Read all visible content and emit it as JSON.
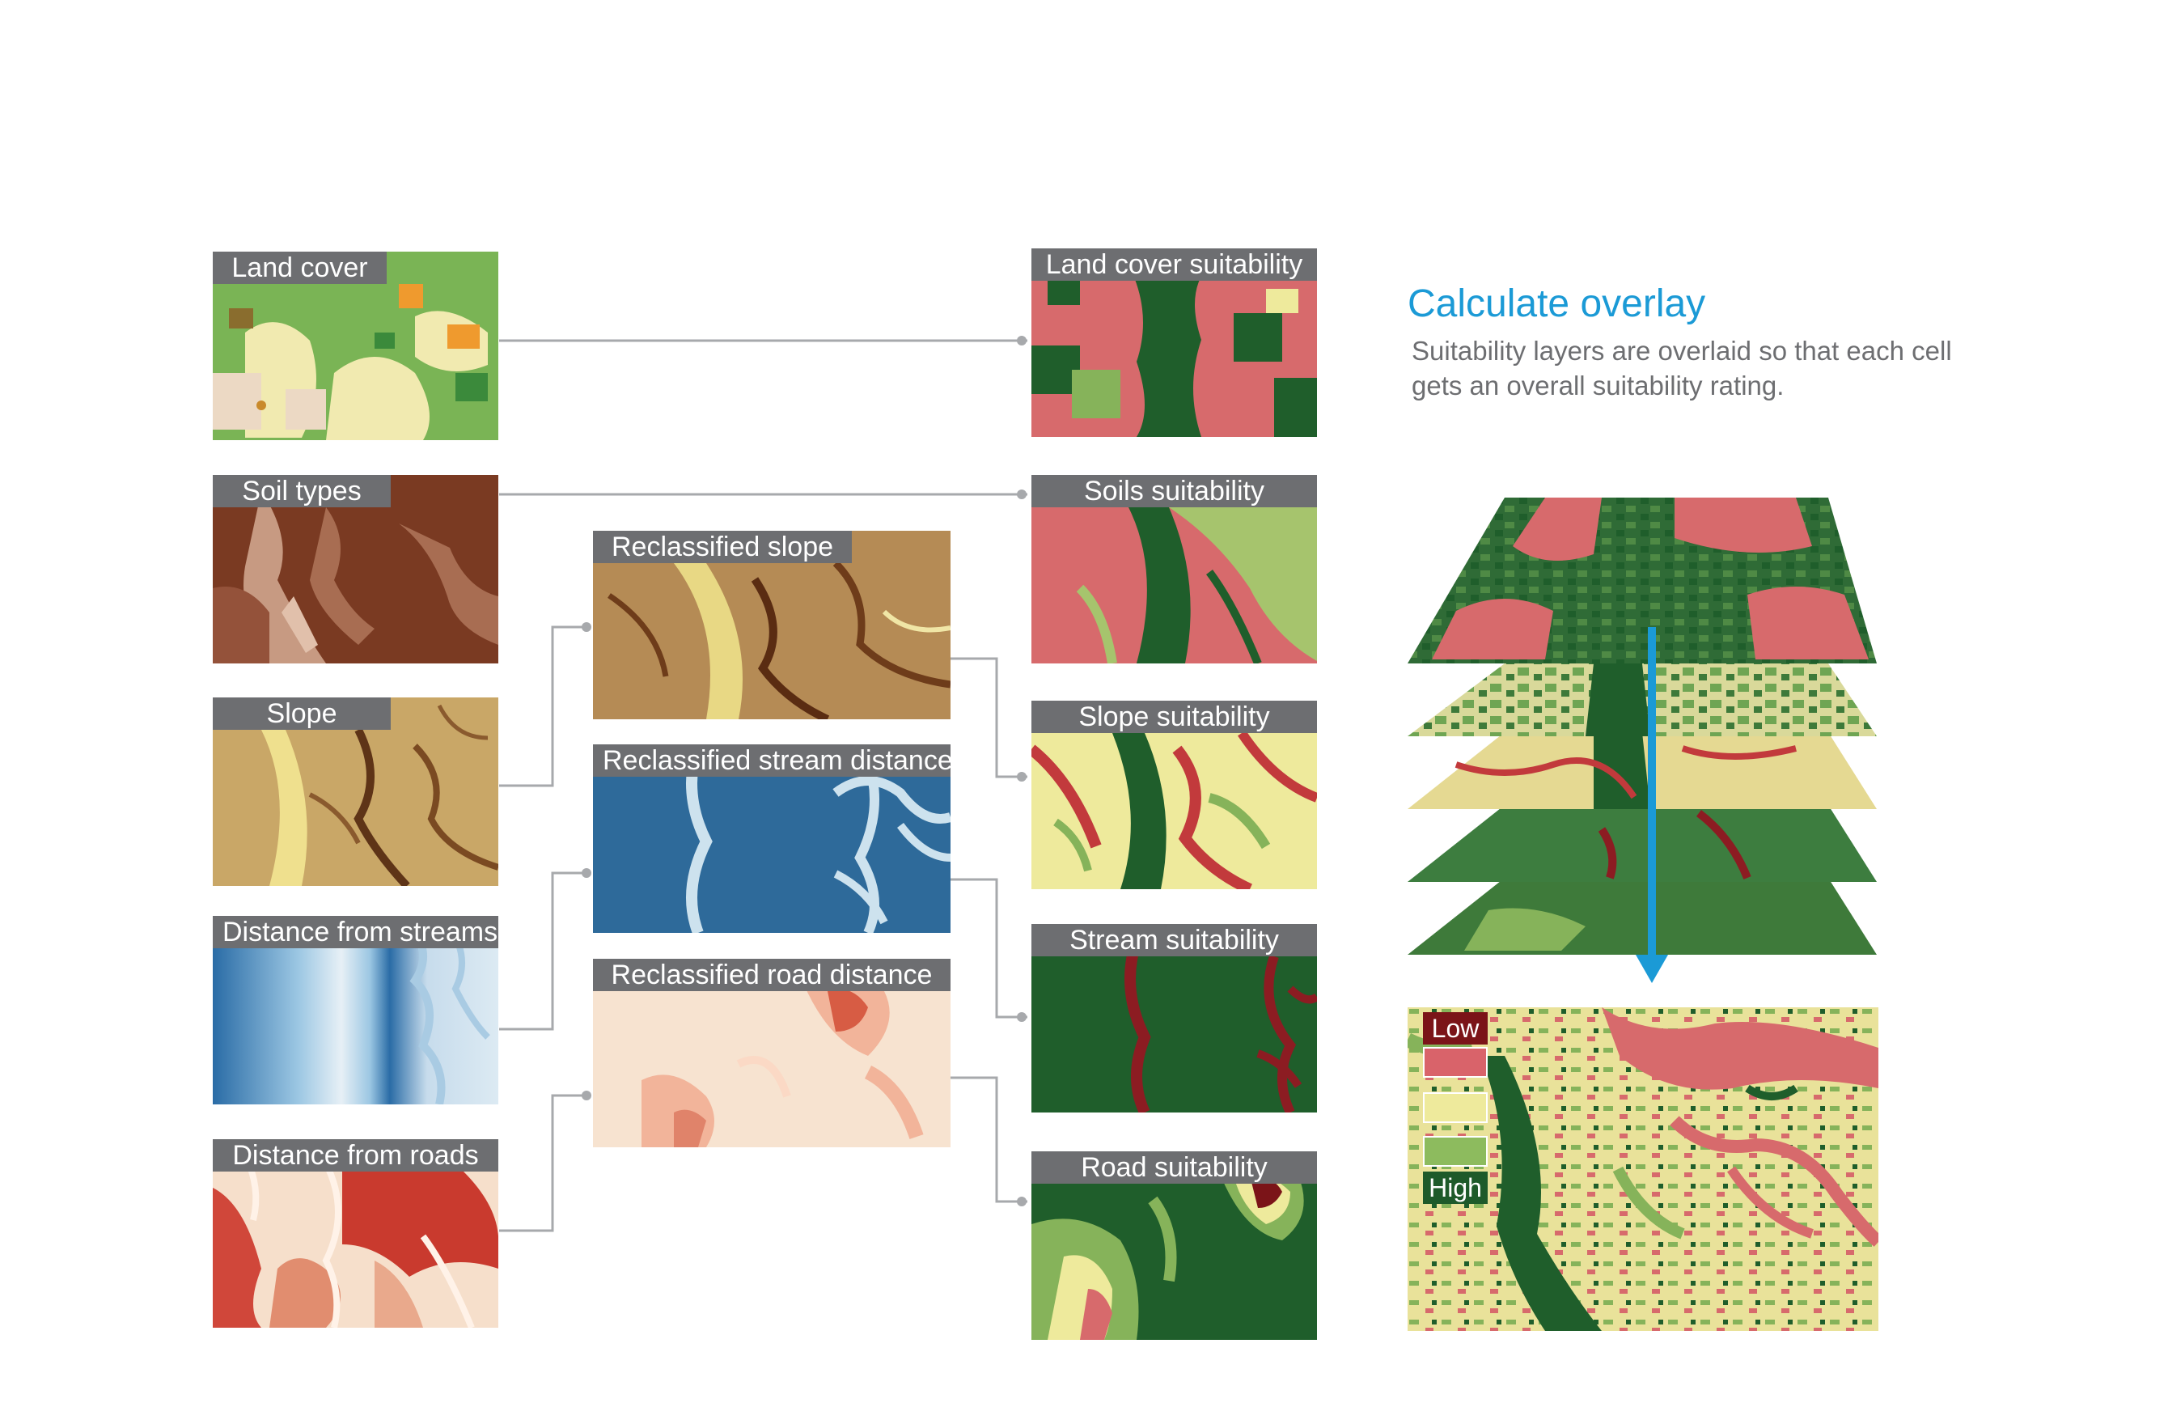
{
  "colors": {
    "label_bg": "#6d6e71",
    "accent": "#1b9ad6",
    "connector": "#a7a9ac",
    "low": "#7b1418",
    "high": "#1e5a2a"
  },
  "input_layers": [
    {
      "label": "Land cover"
    },
    {
      "label": "Soil types"
    },
    {
      "label": "Slope"
    },
    {
      "label": "Distance from streams"
    },
    {
      "label": "Distance from roads"
    }
  ],
  "reclassified_layers": [
    {
      "label": "Reclassified slope"
    },
    {
      "label": "Reclassified stream distance"
    },
    {
      "label": "Reclassified road distance"
    }
  ],
  "suitability_layers": [
    {
      "label": "Land cover suitability"
    },
    {
      "label": "Soils suitability"
    },
    {
      "label": "Slope suitability"
    },
    {
      "label": "Stream suitability"
    },
    {
      "label": "Road suitability"
    }
  ],
  "overlay": {
    "title": "Calculate overlay",
    "description": "Suitability layers are overlaid so that each cell gets an overall suitability rating."
  },
  "legend": {
    "low_label": "Low",
    "high_label": "High",
    "swatches": [
      {
        "name": "low-suitability",
        "color": "#d9636a"
      },
      {
        "name": "moderate-suitability",
        "color": "#eeea9c"
      },
      {
        "name": "good-suitability",
        "color": "#8dbb5e"
      }
    ]
  }
}
